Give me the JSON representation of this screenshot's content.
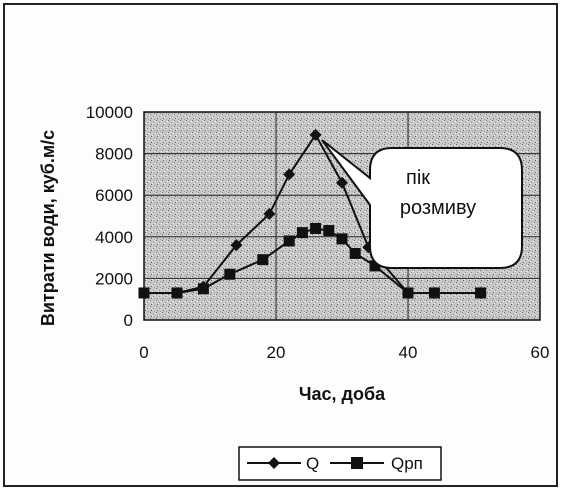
{
  "chart_data": {
    "type": "line",
    "xlabel": "Час, доба",
    "ylabel": "Витрати води, куб.м/с",
    "xlim": [
      0,
      60
    ],
    "ylim": [
      0,
      10000
    ],
    "x_ticks": [
      0,
      20,
      40,
      60
    ],
    "y_ticks": [
      0,
      2000,
      4000,
      6000,
      8000,
      10000
    ],
    "grid": true,
    "legend_position": "bottom",
    "annotation": "пік розмиву",
    "series": [
      {
        "name": "Q",
        "marker": "diamond",
        "color": "#111111",
        "x": [
          0,
          5,
          9,
          14,
          19,
          22,
          26,
          30,
          34,
          40,
          44,
          51
        ],
        "values": [
          1300,
          1300,
          1600,
          3600,
          5100,
          7000,
          8900,
          6600,
          3500,
          1300,
          1300,
          1300
        ]
      },
      {
        "name": "Qрп",
        "marker": "square",
        "color": "#111111",
        "x": [
          0,
          5,
          9,
          13,
          18,
          22,
          24,
          26,
          28,
          30,
          32,
          35,
          40,
          44,
          51
        ],
        "values": [
          1300,
          1300,
          1500,
          2200,
          2900,
          3800,
          4200,
          4400,
          4300,
          3900,
          3200,
          2600,
          1300,
          1300,
          1300
        ]
      }
    ]
  }
}
